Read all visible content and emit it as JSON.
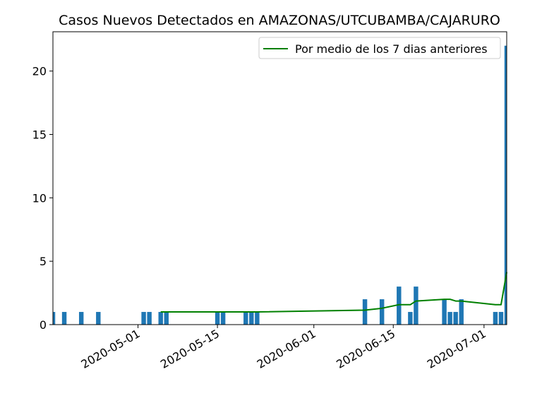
{
  "chart_data": {
    "type": "bar",
    "title": "Casos Nuevos Detectados en AMAZONAS/UTCUBAMBA/CAJARURO",
    "xlabel": "",
    "ylabel": "",
    "xlim": [
      "2020-04-16",
      "2020-07-05"
    ],
    "ylim": [
      0,
      23.1
    ],
    "x_ticks": [
      "2020-05-01",
      "2020-05-15",
      "2020-06-01",
      "2020-06-15",
      "2020-07-01"
    ],
    "y_ticks": [
      0,
      5,
      10,
      15,
      20
    ],
    "grid": false,
    "legend_position": "upper-right",
    "colors": {
      "bars": "#1f77b4",
      "line": "#008000"
    },
    "bars": {
      "x": [
        "2020-04-16",
        "2020-04-18",
        "2020-04-21",
        "2020-04-24",
        "2020-05-02",
        "2020-05-03",
        "2020-05-05",
        "2020-05-06",
        "2020-05-15",
        "2020-05-16",
        "2020-05-20",
        "2020-05-21",
        "2020-05-22",
        "2020-06-10",
        "2020-06-13",
        "2020-06-16",
        "2020-06-18",
        "2020-06-19",
        "2020-06-24",
        "2020-06-25",
        "2020-06-26",
        "2020-06-27",
        "2020-07-03",
        "2020-07-04",
        "2020-07-05"
      ],
      "values": [
        1,
        1,
        1,
        1,
        1,
        1,
        1,
        1,
        1,
        1,
        1,
        1,
        1,
        2,
        2,
        3,
        1,
        3,
        2,
        1,
        1,
        2,
        1,
        1,
        22
      ]
    },
    "series": [
      {
        "name": "Por medio de los 7 dias anteriores",
        "type": "line",
        "x": [
          "2020-05-05",
          "2020-05-22",
          "2020-06-10",
          "2020-06-13",
          "2020-06-16",
          "2020-06-18",
          "2020-06-19",
          "2020-06-24",
          "2020-06-25",
          "2020-06-26",
          "2020-06-27",
          "2020-07-03",
          "2020-07-04",
          "2020-07-05"
        ],
        "values": [
          1.0,
          1.0,
          1.14,
          1.29,
          1.57,
          1.57,
          1.86,
          2.0,
          2.0,
          1.86,
          1.86,
          1.57,
          1.57,
          4.14
        ]
      }
    ]
  }
}
